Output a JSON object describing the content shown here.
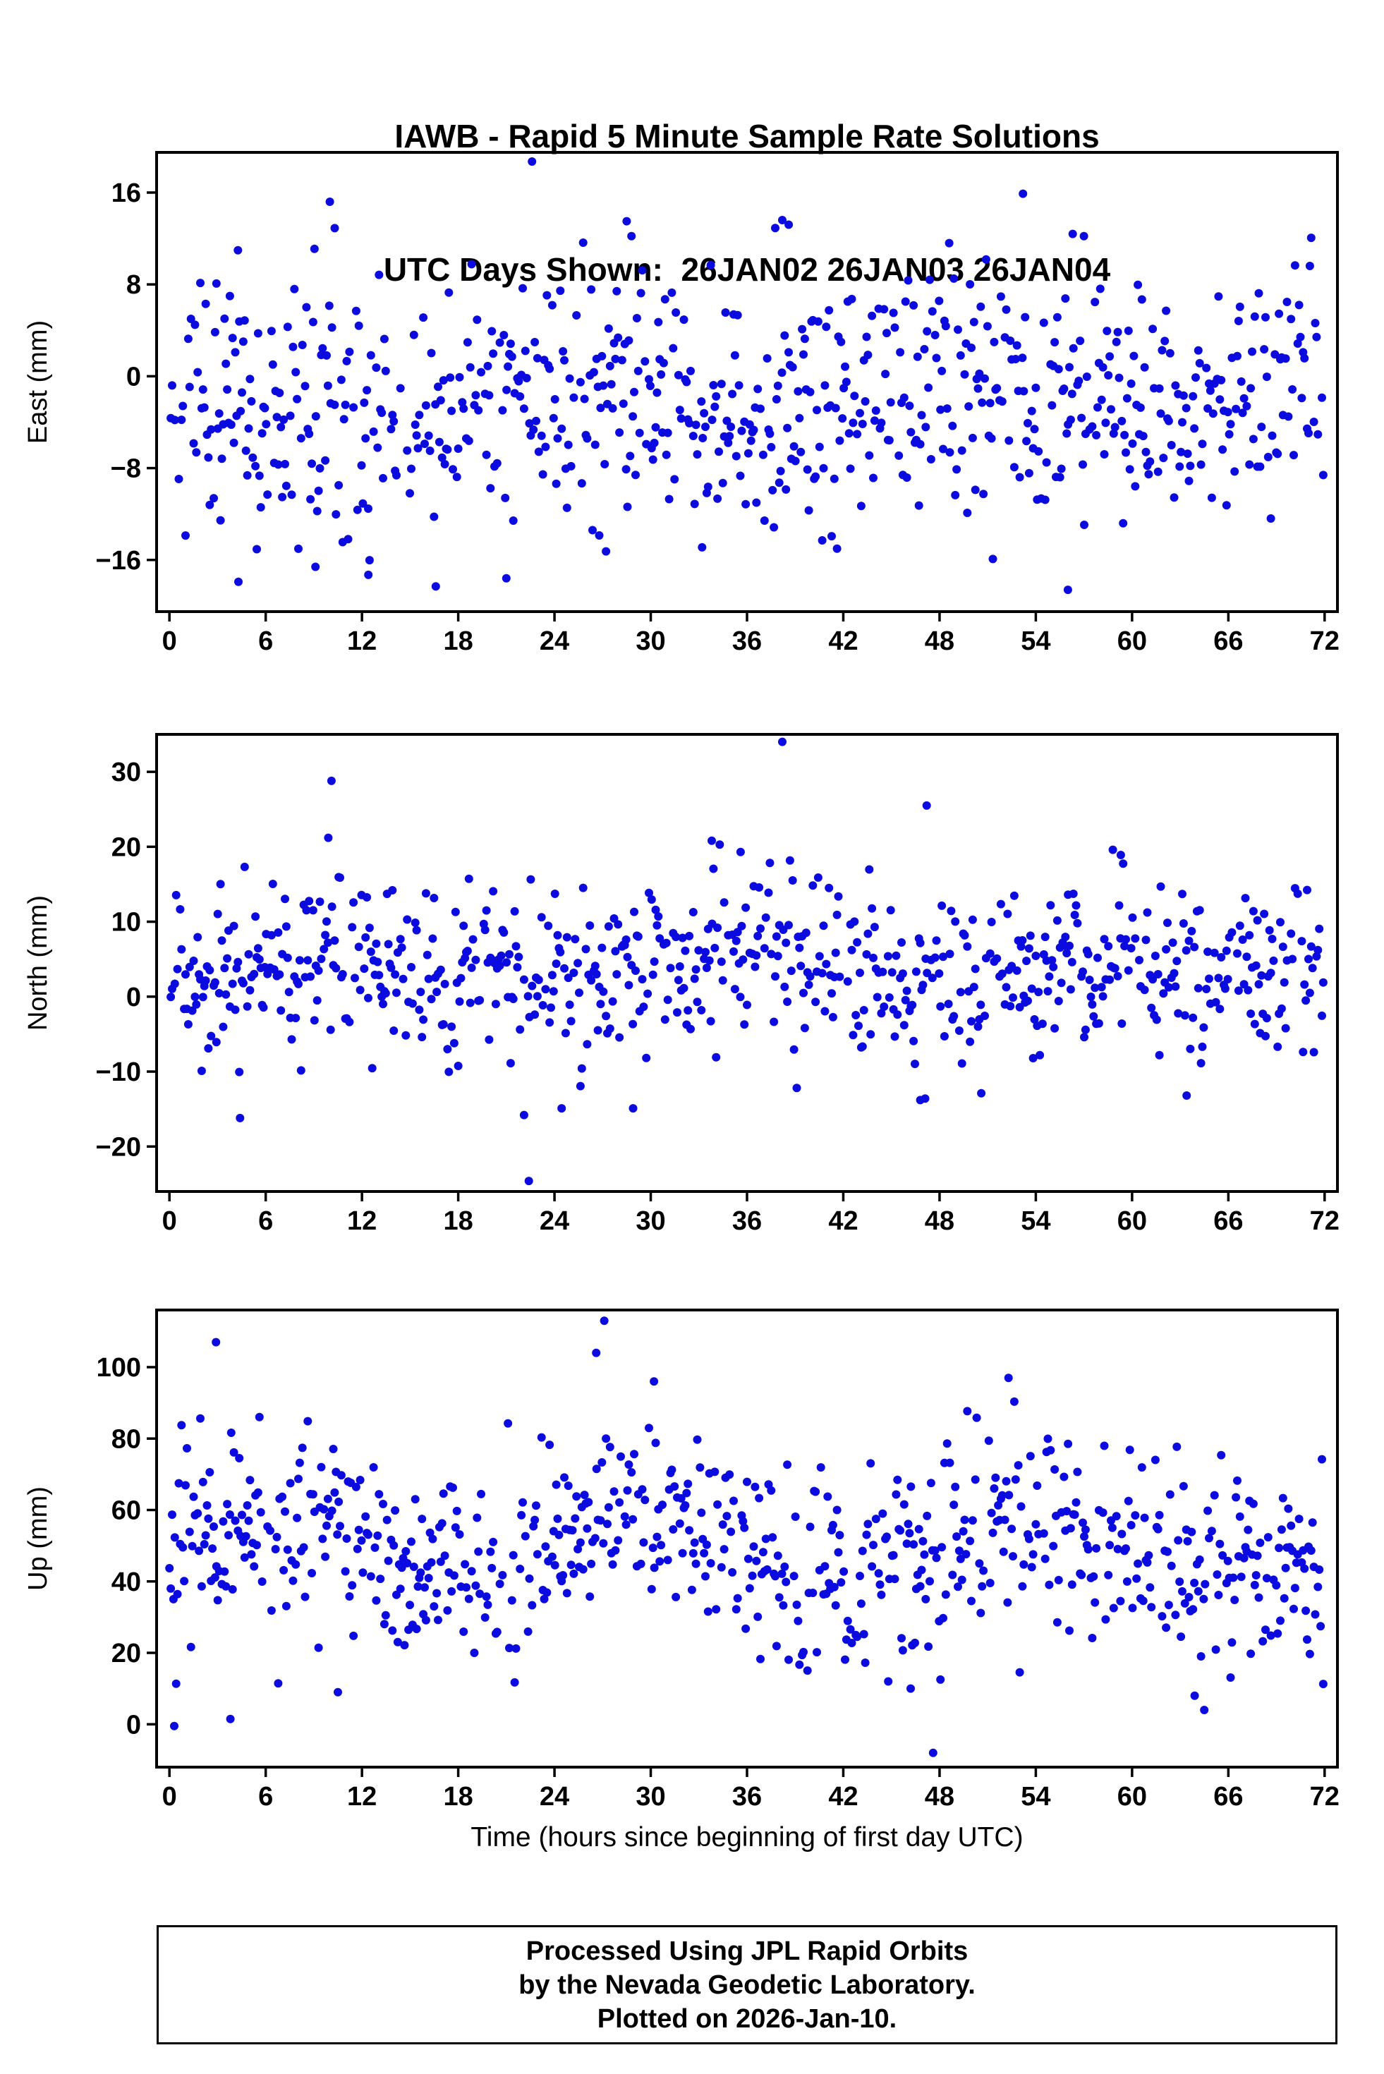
{
  "title": {
    "line1": "IAWB - Rapid 5 Minute Sample Rate Solutions",
    "line2": "UTC Days Shown:  26JAN02 26JAN03 26JAN04"
  },
  "xlabel": "Time (hours since beginning of first day UTC)",
  "footer": {
    "line1": "Processed Using JPL Rapid Orbits",
    "line2": "by the Nevada Geodetic Laboratory.",
    "line3": "Plotted on 2026-Jan-10."
  },
  "style": {
    "point_color": "#0b0bdf",
    "axis_color": "#000000",
    "background": "#ffffff"
  },
  "chart_data": [
    {
      "type": "scatter",
      "name": "east",
      "ylabel": "East (mm)",
      "ylim": [
        -20.5,
        19.5
      ],
      "yticks": [
        -16,
        -8,
        0,
        8,
        16
      ],
      "xlim": [
        -0.8,
        72.8
      ],
      "xticks": [
        0,
        6,
        12,
        18,
        24,
        30,
        36,
        42,
        48,
        54,
        60,
        66,
        72
      ],
      "n_points": 860,
      "gap_prob": 0.18,
      "seed": 101,
      "mean": -2.2,
      "std": 5.5,
      "wave_amp": 1.2,
      "wave_period": 24,
      "wave_phase": 18,
      "clip": [
        -17.5,
        14.5
      ],
      "outliers": [
        [
          22.6,
          18.7
        ],
        [
          10.0,
          15.2
        ],
        [
          53.2,
          15.9
        ],
        [
          10.3,
          12.9
        ],
        [
          28.5,
          13.5
        ],
        [
          38.2,
          13.6
        ],
        [
          38.6,
          13.2
        ],
        [
          56.3,
          12.4
        ],
        [
          57.0,
          12.2
        ],
        [
          48.6,
          11.6
        ],
        [
          16.6,
          -18.3
        ],
        [
          56.0,
          -18.6
        ],
        [
          4.3,
          -17.9
        ],
        [
          21.0,
          -17.6
        ],
        [
          12.4,
          -17.3
        ],
        [
          9.1,
          -16.6
        ],
        [
          33.2,
          -14.9
        ]
      ]
    },
    {
      "type": "scatter",
      "name": "north",
      "ylabel": "North (mm)",
      "ylim": [
        -26,
        35
      ],
      "yticks": [
        -20,
        -10,
        0,
        10,
        20,
        30
      ],
      "xlim": [
        -0.8,
        72.8
      ],
      "xticks": [
        0,
        6,
        12,
        18,
        24,
        30,
        36,
        42,
        48,
        54,
        60,
        66,
        72
      ],
      "n_points": 860,
      "gap_prob": 0.18,
      "seed": 202,
      "mean": 3.8,
      "std": 5.8,
      "wave_amp": 1.5,
      "wave_period": 24,
      "wave_phase": 30,
      "clip": [
        -16.5,
        18.5
      ],
      "outliers": [
        [
          38.2,
          34.0
        ],
        [
          10.1,
          28.8
        ],
        [
          47.2,
          25.5
        ],
        [
          22.4,
          -24.6
        ],
        [
          33.8,
          20.8
        ],
        [
          34.3,
          20.3
        ],
        [
          35.6,
          19.3
        ],
        [
          58.8,
          19.6
        ],
        [
          59.3,
          18.9
        ],
        [
          9.9,
          21.2
        ],
        [
          4.4,
          -16.2
        ],
        [
          46.8,
          -13.8
        ],
        [
          47.1,
          -13.6
        ],
        [
          63.4,
          -13.2
        ],
        [
          22.1,
          -15.8
        ],
        [
          28.9,
          -14.9
        ],
        [
          50.6,
          -12.9
        ]
      ]
    },
    {
      "type": "scatter",
      "name": "up",
      "ylabel": "Up (mm)",
      "ylim": [
        -12,
        116
      ],
      "yticks": [
        0,
        20,
        40,
        60,
        80,
        100
      ],
      "xlim": [
        -0.8,
        72.8
      ],
      "xticks": [
        0,
        6,
        12,
        18,
        24,
        30,
        36,
        42,
        48,
        54,
        60,
        66,
        72
      ],
      "n_points": 860,
      "gap_prob": 0.18,
      "seed": 303,
      "mean": 49,
      "std": 14,
      "wave_amp": 9,
      "wave_period": 24,
      "wave_phase": 24,
      "clip": [
        8,
        97
      ],
      "outliers": [
        [
          27.1,
          113.0
        ],
        [
          2.9,
          107.0
        ],
        [
          26.6,
          104.0
        ],
        [
          30.2,
          96.0
        ],
        [
          52.3,
          97.0
        ],
        [
          47.6,
          -8.0
        ],
        [
          0.3,
          -0.5
        ],
        [
          44.8,
          12.0
        ],
        [
          46.2,
          10.0
        ],
        [
          64.5,
          4.0
        ],
        [
          63.9,
          8.0
        ],
        [
          10.5,
          9.0
        ],
        [
          3.8,
          1.5
        ]
      ]
    }
  ]
}
